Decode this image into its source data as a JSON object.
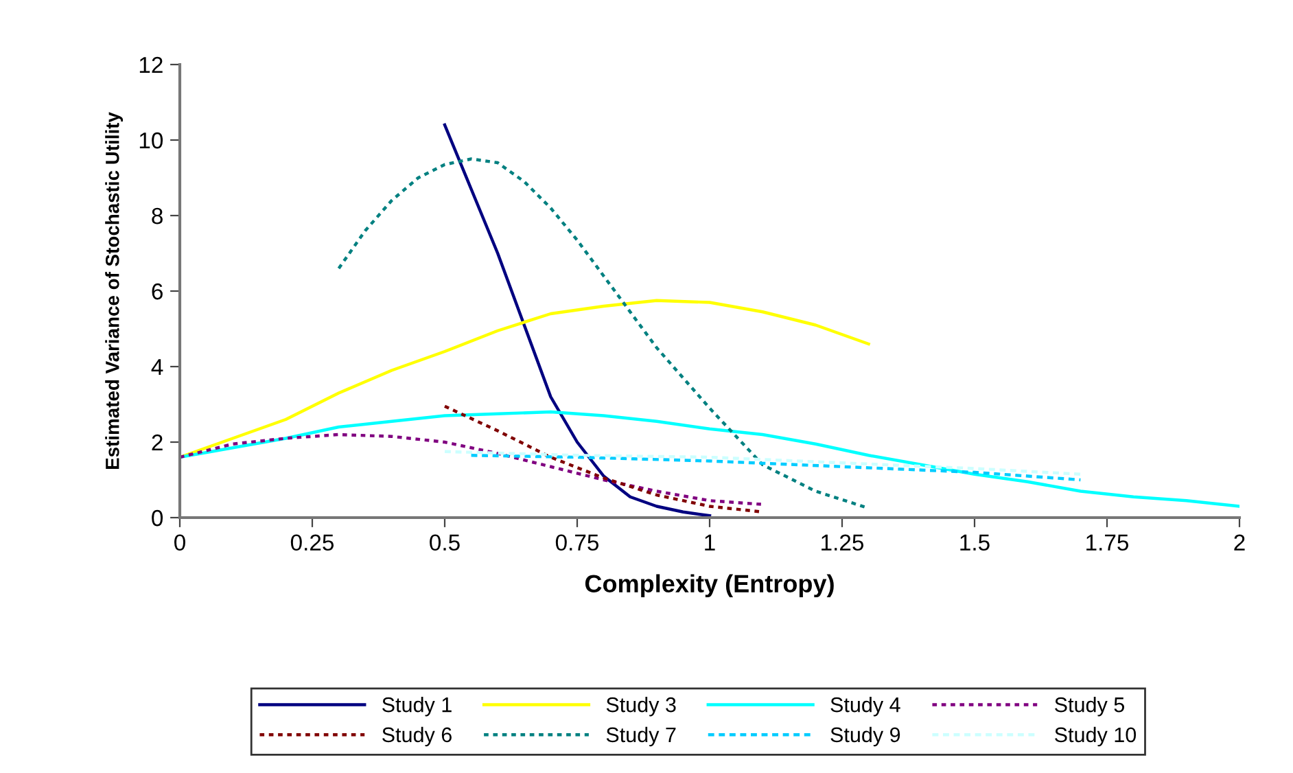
{
  "chart_data": {
    "type": "line",
    "xlabel": "Complexity (Entropy)",
    "ylabel": "Estimated Variance of Stochastic Utility",
    "xlim": [
      0,
      2
    ],
    "xticks": [
      0,
      0.25,
      0.5,
      0.75,
      1,
      1.25,
      1.5,
      1.75,
      2
    ],
    "ylim": [
      0,
      12
    ],
    "yticks": [
      0,
      2,
      4,
      6,
      8,
      10,
      12
    ],
    "grid": false,
    "legend": "bottom",
    "marker": "none",
    "series": [
      {
        "name": "Study 1",
        "color": "#000080",
        "line_style": "solid",
        "x": [
          0.5,
          0.55,
          0.6,
          0.65,
          0.7,
          0.75,
          0.8,
          0.85,
          0.9,
          0.95,
          1.0
        ],
        "values": [
          10.4,
          8.7,
          7.0,
          5.1,
          3.2,
          2.0,
          1.1,
          0.55,
          0.3,
          0.15,
          0.05
        ]
      },
      {
        "name": "Study 3",
        "color": "#ffff00",
        "line_style": "solid",
        "x": [
          0,
          0.1,
          0.2,
          0.3,
          0.4,
          0.5,
          0.6,
          0.7,
          0.8,
          0.9,
          1.0,
          1.1,
          1.2,
          1.3
        ],
        "values": [
          1.6,
          2.1,
          2.6,
          3.3,
          3.9,
          4.4,
          4.95,
          5.4,
          5.6,
          5.75,
          5.7,
          5.45,
          5.1,
          4.6
        ]
      },
      {
        "name": "Study 4",
        "color": "#00ffff",
        "line_style": "solid",
        "x": [
          0,
          0.2,
          0.3,
          0.4,
          0.5,
          0.6,
          0.7,
          0.8,
          0.9,
          1.0,
          1.1,
          1.2,
          1.3,
          1.4,
          1.5,
          1.6,
          1.7,
          1.8,
          1.9,
          2.0
        ],
        "values": [
          1.6,
          2.1,
          2.4,
          2.55,
          2.7,
          2.75,
          2.8,
          2.7,
          2.55,
          2.35,
          2.2,
          1.95,
          1.65,
          1.4,
          1.15,
          0.95,
          0.7,
          0.55,
          0.45,
          0.3
        ]
      },
      {
        "name": "Study 5",
        "color": "#800080",
        "line_style": "dotted",
        "x": [
          0,
          0.1,
          0.2,
          0.3,
          0.4,
          0.5,
          0.6,
          0.7,
          0.8,
          0.9,
          1.0,
          1.1
        ],
        "values": [
          1.6,
          1.95,
          2.1,
          2.2,
          2.15,
          2.0,
          1.7,
          1.35,
          1.0,
          0.7,
          0.45,
          0.35
        ]
      },
      {
        "name": "Study 6",
        "color": "#800000",
        "line_style": "dotted",
        "x": [
          0.5,
          0.6,
          0.7,
          0.8,
          0.9,
          1.0,
          1.1
        ],
        "values": [
          2.95,
          2.3,
          1.6,
          1.05,
          0.6,
          0.3,
          0.15
        ]
      },
      {
        "name": "Study 7",
        "color": "#008080",
        "line_style": "dotted",
        "x": [
          0.3,
          0.35,
          0.4,
          0.45,
          0.5,
          0.55,
          0.6,
          0.65,
          0.7,
          0.75,
          0.8,
          0.9,
          1.0,
          1.1,
          1.2,
          1.3
        ],
        "values": [
          6.6,
          7.6,
          8.4,
          9.0,
          9.35,
          9.5,
          9.4,
          8.9,
          8.2,
          7.35,
          6.4,
          4.5,
          2.9,
          1.4,
          0.7,
          0.25
        ]
      },
      {
        "name": "Study 9",
        "color": "#00ccff",
        "line_style": "dashed",
        "x": [
          0.55,
          0.75,
          1.0,
          1.25,
          1.5,
          1.7
        ],
        "values": [
          1.65,
          1.6,
          1.5,
          1.35,
          1.2,
          1.0
        ]
      },
      {
        "name": "Study 10",
        "color": "#ccffff",
        "line_style": "dashed",
        "x": [
          0.5,
          0.75,
          1.0,
          1.25,
          1.5,
          1.7
        ],
        "values": [
          1.75,
          1.65,
          1.6,
          1.45,
          1.3,
          1.15
        ]
      }
    ]
  }
}
